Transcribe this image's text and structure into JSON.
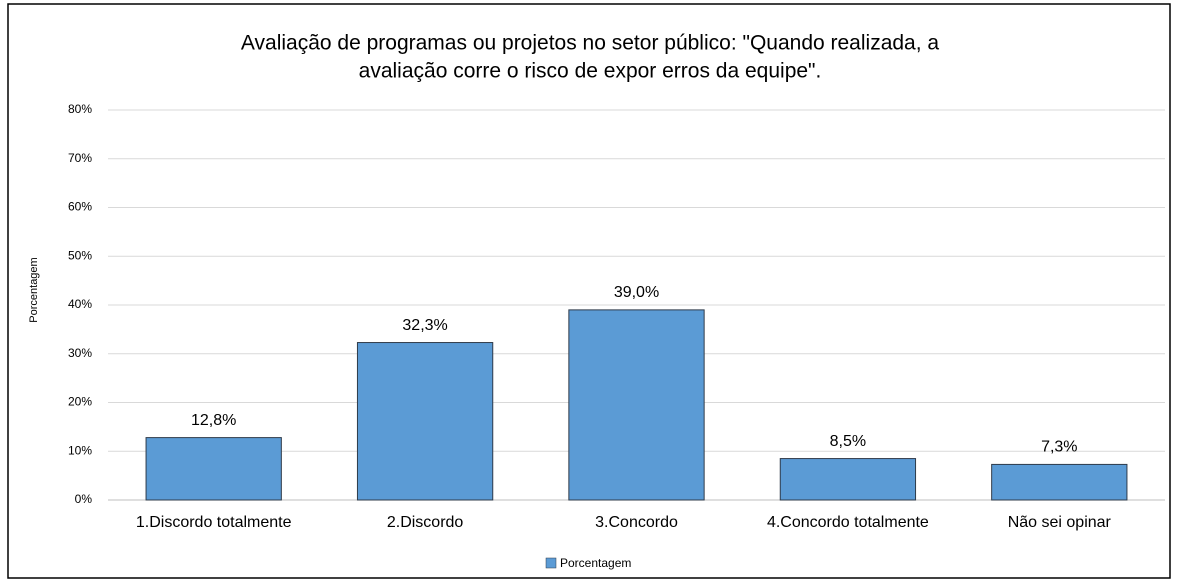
{
  "chart_data": {
    "type": "bar",
    "title": [
      "Avaliação de programas ou projetos no setor público: \"Quando realizada, a",
      "avaliação corre o risco de expor erros da equipe\"."
    ],
    "y_label": "Porcentagem",
    "categories": [
      "1.Discordo totalmente",
      "2.Discordo",
      "3.Concordo",
      "4.Concordo totalmente",
      "Não sei opinar"
    ],
    "series": [
      {
        "name": "Porcentagem",
        "color": "#5b9bd5",
        "values": [
          12.8,
          32.3,
          39.0,
          8.5,
          7.3
        ],
        "value_labels": [
          "12,8%",
          "32,3%",
          "39,0%",
          "8,5%",
          "7,3%"
        ]
      }
    ],
    "ylim": [
      0,
      80
    ],
    "yticks": [
      {
        "value": 0,
        "label": "0%"
      },
      {
        "value": 10,
        "label": "10%"
      },
      {
        "value": 20,
        "label": "20%"
      },
      {
        "value": 30,
        "label": "30%"
      },
      {
        "value": 40,
        "label": "40%"
      },
      {
        "value": 50,
        "label": "50%"
      },
      {
        "value": 60,
        "label": "60%"
      },
      {
        "value": 70,
        "label": "70%"
      },
      {
        "value": 80,
        "label": "80%"
      }
    ],
    "grid": true,
    "legend": "bottom"
  }
}
